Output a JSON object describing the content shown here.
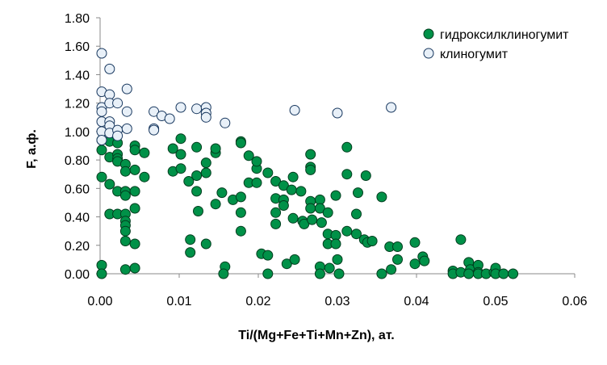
{
  "chart_data": {
    "type": "scatter",
    "title": "",
    "xlabel": "Ti/(Mg+Fe+Ti+Mn+Zn), ат.",
    "ylabel": "F, а.ф.",
    "xlim": [
      0,
      0.06
    ],
    "ylim": [
      0,
      1.8
    ],
    "x_ticks": [
      "0.00",
      "0.01",
      "0.02",
      "0.03",
      "0.04",
      "0.05",
      "0.06"
    ],
    "y_ticks": [
      "0.00",
      "0.20",
      "0.40",
      "0.60",
      "0.80",
      "1.00",
      "1.20",
      "1.40",
      "1.60",
      "1.80"
    ],
    "grid": false,
    "legend_position": "top-right",
    "series": [
      {
        "name": "гидроксилклиногумит",
        "color": "#009148",
        "edge_color": "#003d1e",
        "marker": "filled-circle",
        "points": [
          [
            0.0002,
            0.68
          ],
          [
            0.0002,
            0.87
          ],
          [
            0.0002,
            0.94
          ],
          [
            0.0002,
            0.06
          ],
          [
            0.0002,
            0.0
          ],
          [
            0.0012,
            0.93
          ],
          [
            0.0012,
            0.82
          ],
          [
            0.0012,
            0.63
          ],
          [
            0.0012,
            0.42
          ],
          [
            0.0022,
            0.92
          ],
          [
            0.0022,
            0.84
          ],
          [
            0.0022,
            0.81
          ],
          [
            0.0022,
            0.79
          ],
          [
            0.0022,
            0.58
          ],
          [
            0.0022,
            0.42
          ],
          [
            0.0032,
            0.77
          ],
          [
            0.0032,
            0.72
          ],
          [
            0.0032,
            0.58
          ],
          [
            0.0032,
            0.55
          ],
          [
            0.0032,
            0.42
          ],
          [
            0.0032,
            0.37
          ],
          [
            0.0032,
            0.34
          ],
          [
            0.0032,
            0.3
          ],
          [
            0.0032,
            0.23
          ],
          [
            0.0032,
            0.03
          ],
          [
            0.0044,
            0.9
          ],
          [
            0.0044,
            0.87
          ],
          [
            0.0044,
            0.73
          ],
          [
            0.0044,
            0.58
          ],
          [
            0.0044,
            0.46
          ],
          [
            0.0044,
            0.21
          ],
          [
            0.0044,
            0.04
          ],
          [
            0.0056,
            0.85
          ],
          [
            0.0056,
            0.68
          ],
          [
            0.0092,
            0.88
          ],
          [
            0.0092,
            0.72
          ],
          [
            0.0102,
            0.95
          ],
          [
            0.0102,
            0.84
          ],
          [
            0.0102,
            0.74
          ],
          [
            0.0112,
            0.65
          ],
          [
            0.0114,
            0.24
          ],
          [
            0.0114,
            0.15
          ],
          [
            0.0122,
            0.89
          ],
          [
            0.0122,
            0.69
          ],
          [
            0.0122,
            0.58
          ],
          [
            0.0124,
            0.44
          ],
          [
            0.0134,
            0.78
          ],
          [
            0.0134,
            0.71
          ],
          [
            0.0134,
            0.21
          ],
          [
            0.0146,
            0.85
          ],
          [
            0.0146,
            0.88
          ],
          [
            0.0146,
            0.49
          ],
          [
            0.0154,
            0.57
          ],
          [
            0.0158,
            0.05
          ],
          [
            0.0156,
            0.0
          ],
          [
            0.0168,
            0.52
          ],
          [
            0.0178,
            0.93
          ],
          [
            0.0178,
            0.92
          ],
          [
            0.0178,
            0.54
          ],
          [
            0.0178,
            0.43
          ],
          [
            0.0178,
            0.3
          ],
          [
            0.0188,
            0.83
          ],
          [
            0.0188,
            0.64
          ],
          [
            0.0198,
            0.74
          ],
          [
            0.0198,
            0.79
          ],
          [
            0.0198,
            0.64
          ],
          [
            0.0204,
            0.14
          ],
          [
            0.0212,
            0.71
          ],
          [
            0.0212,
            0.13
          ],
          [
            0.0212,
            0.0
          ],
          [
            0.0222,
            0.53
          ],
          [
            0.0222,
            0.65
          ],
          [
            0.0222,
            0.43
          ],
          [
            0.0222,
            0.35
          ],
          [
            0.0232,
            0.62
          ],
          [
            0.0232,
            0.52
          ],
          [
            0.0232,
            0.48
          ],
          [
            0.0236,
            0.07
          ],
          [
            0.0242,
            0.59
          ],
          [
            0.0244,
            0.68
          ],
          [
            0.0244,
            0.39
          ],
          [
            0.0246,
            0.1
          ],
          [
            0.0254,
            0.58
          ],
          [
            0.0256,
            0.37
          ],
          [
            0.0258,
            0.35
          ],
          [
            0.0266,
            0.84
          ],
          [
            0.0266,
            0.75
          ],
          [
            0.0266,
            0.73
          ],
          [
            0.0266,
            0.51
          ],
          [
            0.0266,
            0.46
          ],
          [
            0.0268,
            0.38
          ],
          [
            0.0278,
            0.52
          ],
          [
            0.0278,
            0.46
          ],
          [
            0.028,
            0.36
          ],
          [
            0.0278,
            0.05
          ],
          [
            0.0278,
            0.0
          ],
          [
            0.0288,
            0.43
          ],
          [
            0.0288,
            0.28
          ],
          [
            0.0288,
            0.21
          ],
          [
            0.029,
            0.04
          ],
          [
            0.0298,
            0.55
          ],
          [
            0.0298,
            0.27
          ],
          [
            0.0298,
            0.21
          ],
          [
            0.03,
            0.1
          ],
          [
            0.0302,
            0.0
          ],
          [
            0.0312,
            0.89
          ],
          [
            0.0312,
            0.7
          ],
          [
            0.0312,
            0.3
          ],
          [
            0.0324,
            0.42
          ],
          [
            0.0324,
            0.28
          ],
          [
            0.0326,
            0.57
          ],
          [
            0.0334,
            0.24
          ],
          [
            0.0336,
            0.69
          ],
          [
            0.0338,
            0.22
          ],
          [
            0.0344,
            0.23
          ],
          [
            0.0356,
            0.54
          ],
          [
            0.0356,
            0.0
          ],
          [
            0.0366,
            0.19
          ],
          [
            0.0368,
            0.03
          ],
          [
            0.0376,
            0.19
          ],
          [
            0.0376,
            0.1
          ],
          [
            0.0398,
            0.22
          ],
          [
            0.0398,
            0.07
          ],
          [
            0.0408,
            0.12
          ],
          [
            0.041,
            0.09
          ],
          [
            0.0446,
            0.02
          ],
          [
            0.0446,
            0.0
          ],
          [
            0.0456,
            0.24
          ],
          [
            0.0456,
            0.01
          ],
          [
            0.0466,
            0.08
          ],
          [
            0.0468,
            0.03
          ],
          [
            0.0466,
            0.0
          ],
          [
            0.0478,
            0.06
          ],
          [
            0.0478,
            0.01
          ],
          [
            0.0478,
            0.0
          ],
          [
            0.0488,
            0.0
          ],
          [
            0.0498,
            0.01
          ],
          [
            0.05,
            0.04
          ],
          [
            0.05,
            0.0
          ],
          [
            0.051,
            0.0
          ],
          [
            0.0522,
            0.0
          ]
        ]
      },
      {
        "name": "клиногумит",
        "color": "#e8f0f8",
        "edge_color": "#17375e",
        "marker": "open-circle",
        "points": [
          [
            0.0002,
            1.55
          ],
          [
            0.0002,
            1.28
          ],
          [
            0.0002,
            1.17
          ],
          [
            0.0002,
            1.14
          ],
          [
            0.0002,
            1.07
          ],
          [
            0.0002,
            1.0
          ],
          [
            0.0002,
            0.94
          ],
          [
            0.0012,
            1.44
          ],
          [
            0.0012,
            1.26
          ],
          [
            0.0012,
            1.2
          ],
          [
            0.0012,
            1.07
          ],
          [
            0.0012,
            1.04
          ],
          [
            0.0012,
            0.99
          ],
          [
            0.0022,
            1.2
          ],
          [
            0.0022,
            1.01
          ],
          [
            0.0022,
            0.97
          ],
          [
            0.0034,
            1.3
          ],
          [
            0.0034,
            1.14
          ],
          [
            0.0034,
            1.02
          ],
          [
            0.0068,
            1.14
          ],
          [
            0.0068,
            1.02
          ],
          [
            0.0068,
            1.01
          ],
          [
            0.0078,
            1.11
          ],
          [
            0.0088,
            1.09
          ],
          [
            0.0102,
            1.17
          ],
          [
            0.0122,
            1.16
          ],
          [
            0.0134,
            1.17
          ],
          [
            0.0134,
            1.13
          ],
          [
            0.0134,
            1.1
          ],
          [
            0.0158,
            1.06
          ],
          [
            0.0246,
            1.15
          ],
          [
            0.03,
            1.13
          ],
          [
            0.0368,
            1.17
          ]
        ]
      }
    ]
  }
}
